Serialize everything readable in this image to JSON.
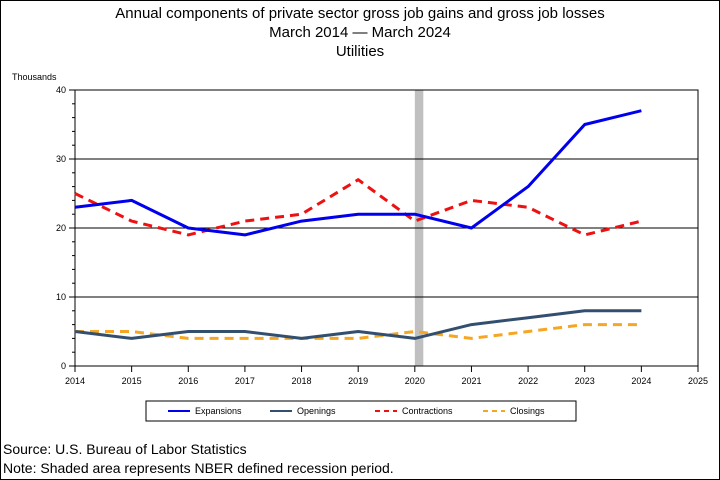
{
  "chart_data": {
    "type": "line",
    "title": "Annual components of private sector gross job gains and gross job losses",
    "subtitle": "March 2014 — March 2024",
    "subtitle2": "Utilities",
    "ylabel": "Thousands",
    "xlabel": "",
    "xlim": [
      2014,
      2025
    ],
    "ylim": [
      0,
      40
    ],
    "x_ticks": [
      2014,
      2015,
      2016,
      2017,
      2018,
      2019,
      2020,
      2021,
      2022,
      2023,
      2024,
      2025
    ],
    "y_ticks": [
      0,
      10,
      20,
      30,
      40
    ],
    "grid": "horizontal",
    "recession_shading": [
      2020.0,
      2020.15
    ],
    "x": [
      2014,
      2015,
      2016,
      2017,
      2018,
      2019,
      2020,
      2021,
      2022,
      2023,
      2024
    ],
    "series": [
      {
        "name": "Expansions",
        "color": "#0000ee",
        "style": "solid",
        "values": [
          23,
          24,
          20,
          19,
          21,
          22,
          22,
          20,
          26,
          35,
          37
        ]
      },
      {
        "name": "Openings",
        "color": "#334f70",
        "style": "solid",
        "values": [
          5,
          4,
          5,
          5,
          4,
          5,
          4,
          6,
          7,
          8,
          8
        ]
      },
      {
        "name": "Contractions",
        "color": "#ee1111",
        "style": "dashed",
        "values": [
          25,
          21,
          19,
          21,
          22,
          27,
          21,
          24,
          23,
          19,
          21
        ]
      },
      {
        "name": "Closings",
        "color": "#f5a623",
        "style": "dashed",
        "values": [
          5,
          5,
          4,
          4,
          4,
          4,
          5,
          4,
          5,
          6,
          6
        ]
      }
    ],
    "legend_placement": "bottom"
  },
  "footer": {
    "source": "Source: U.S. Bureau of Labor Statistics",
    "note": "Note: Shaded area represents NBER defined recession period."
  }
}
